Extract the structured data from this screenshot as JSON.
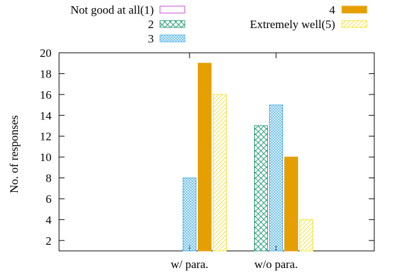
{
  "chart_data": {
    "type": "bar",
    "categories": [
      "w/ para.",
      "w/o para."
    ],
    "series": [
      {
        "name": "Not good at all(1)",
        "values": [
          0,
          0
        ],
        "color": "#c34fd0",
        "pattern": "empty"
      },
      {
        "name": "2",
        "values": [
          0,
          13
        ],
        "color": "#2f9f7a",
        "pattern": "crosshatch"
      },
      {
        "name": "3",
        "values": [
          8,
          15
        ],
        "color": "#56b4e9",
        "pattern": "dense-crosshatch"
      },
      {
        "name": "4",
        "values": [
          19,
          10
        ],
        "color": "#e69f00",
        "pattern": "solid"
      },
      {
        "name": "Extremely well(5)",
        "values": [
          16,
          4
        ],
        "color": "#f0e442",
        "pattern": "diagonal"
      }
    ],
    "ylabel": "No. of responses",
    "xlabel": "",
    "ylim": [
      1,
      20
    ],
    "yticks": [
      2,
      4,
      6,
      8,
      10,
      12,
      14,
      16,
      18,
      20
    ],
    "grid": false,
    "legend_position": "top"
  }
}
